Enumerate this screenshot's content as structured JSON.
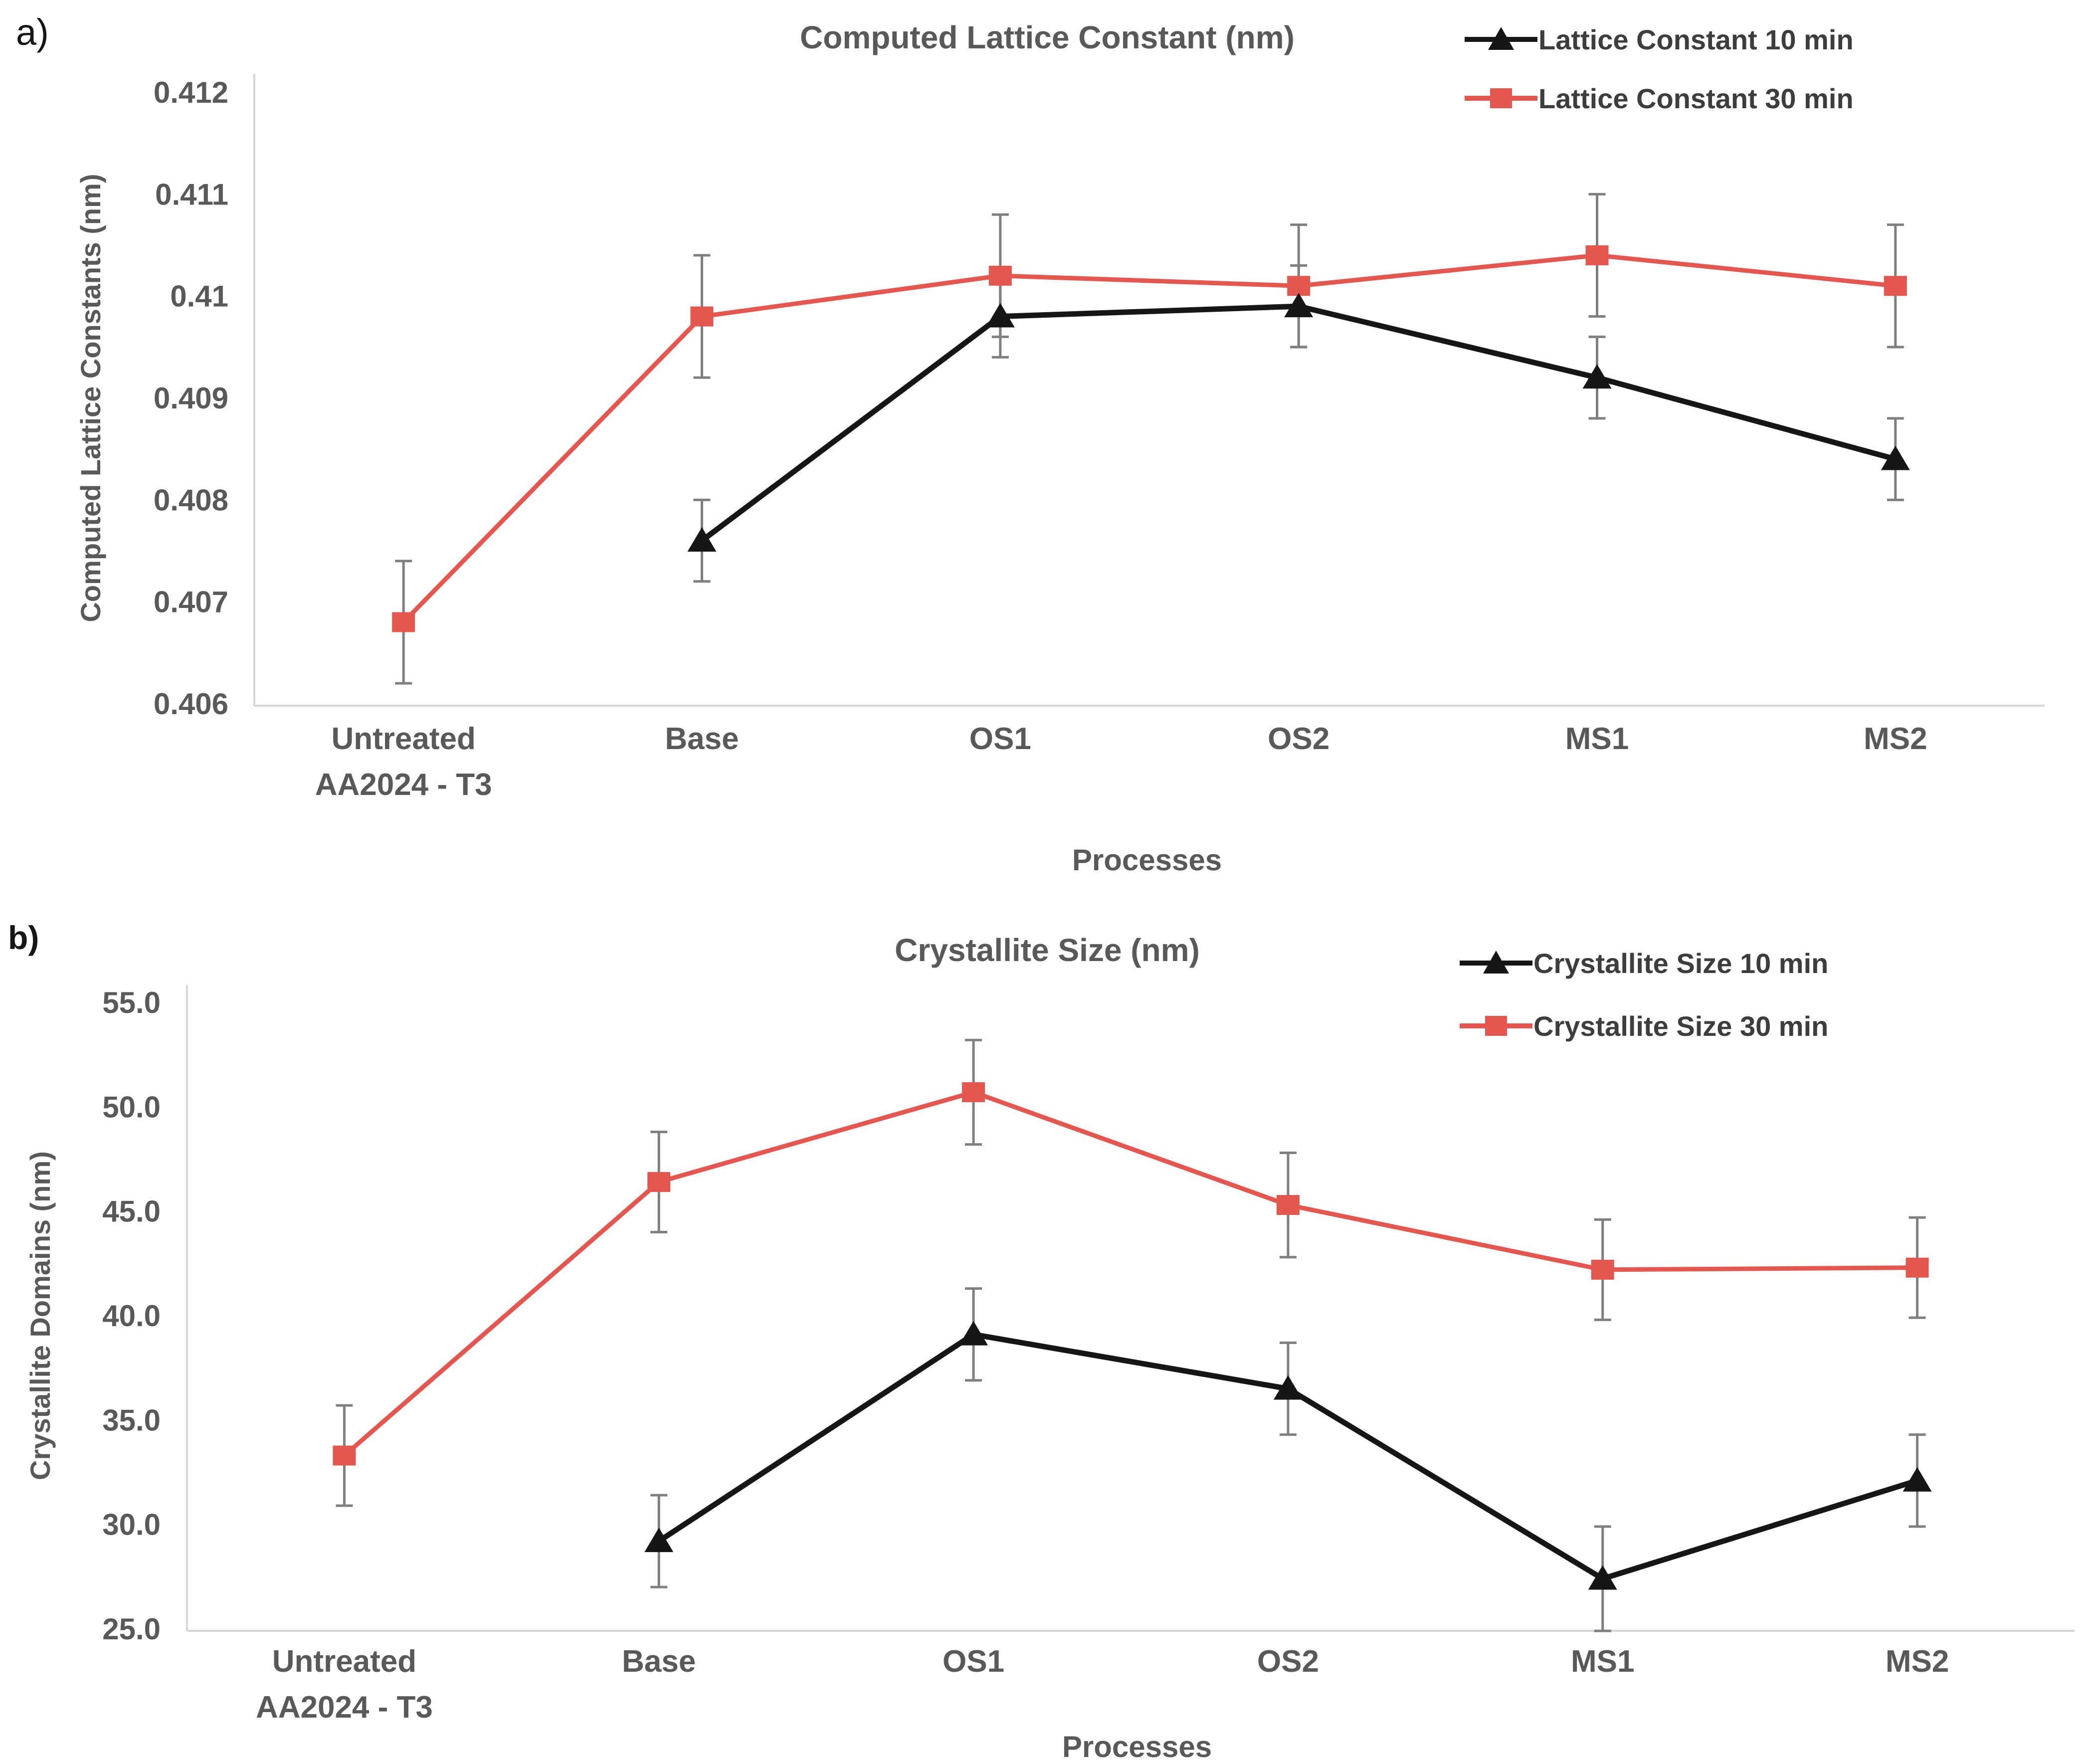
{
  "page": {
    "panel_a_label": "a)",
    "panel_b_label": "b)"
  },
  "colors": {
    "series_10min": "#161616",
    "series_30min": "#E5564F",
    "error_bar": "#7f7f7f",
    "axis_line": "#d6d6d6",
    "text_gray": "#595959",
    "legend_text": "#3d3d3d"
  },
  "chart_data": [
    {
      "id": "lattice-constant",
      "type": "line",
      "title": "Computed Lattice Constant (nm)",
      "xlabel": "Processes",
      "ylabel": "Computed Lattice Constants (nm)",
      "ylim": [
        0.406,
        0.412
      ],
      "ytick_labels": [
        "0.412",
        "0.411",
        "0.41",
        "0.409",
        "0.408",
        "0.407",
        "0.406"
      ],
      "grid": false,
      "legend_position": "top-right",
      "categories": [
        [
          "Untreated",
          "AA2024 - T3"
        ],
        [
          "Base"
        ],
        [
          "OS1"
        ],
        [
          "OS2"
        ],
        [
          "MS1"
        ],
        [
          "MS2"
        ]
      ],
      "series": [
        {
          "name": "Lattice Constant 10 min",
          "color": "#161616",
          "marker": "triangle",
          "values": [
            null,
            0.4076,
            0.4098,
            0.4099,
            0.4092,
            0.4084
          ],
          "errors": [
            null,
            0.0004,
            0.0004,
            0.0004,
            0.0004,
            0.0004
          ]
        },
        {
          "name": "Lattice Constant 30 min",
          "color": "#E5564F",
          "marker": "square",
          "values": [
            0.4068,
            0.4098,
            0.4102,
            0.4101,
            0.4104,
            0.4101
          ],
          "errors": [
            0.0006,
            0.0006,
            0.0006,
            0.0006,
            0.0006,
            0.0006
          ]
        }
      ]
    },
    {
      "id": "crystallite-size",
      "type": "line",
      "title": "Crystallite Size (nm)",
      "xlabel": "Processes",
      "ylabel": "Crystallite Domains (nm)",
      "ylim": [
        25.0,
        55.0
      ],
      "ytick_labels": [
        "55.0",
        "50.0",
        "45.0",
        "40.0",
        "35.0",
        "30.0",
        "25.0"
      ],
      "grid": false,
      "legend_position": "top-right",
      "categories": [
        [
          "Untreated",
          "AA2024 - T3"
        ],
        [
          "Base"
        ],
        [
          "OS1"
        ],
        [
          "OS2"
        ],
        [
          "MS1"
        ],
        [
          "MS2"
        ]
      ],
      "series": [
        {
          "name": "Crystallite Size 10 min",
          "color": "#161616",
          "marker": "triangle",
          "values": [
            null,
            29.2,
            39.1,
            36.5,
            27.4,
            32.1
          ],
          "errors": [
            null,
            2.2,
            2.2,
            2.2,
            2.5,
            2.2
          ]
        },
        {
          "name": "Crystallite Size 30 min",
          "color": "#E5564F",
          "marker": "square",
          "values": [
            33.3,
            46.4,
            50.7,
            45.3,
            42.2,
            42.3
          ],
          "errors": [
            2.4,
            2.4,
            2.5,
            2.5,
            2.4,
            2.4
          ]
        }
      ]
    }
  ]
}
